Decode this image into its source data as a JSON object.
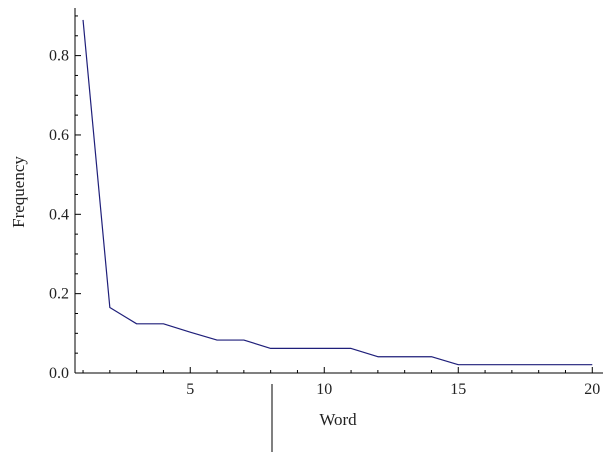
{
  "chart_data": {
    "type": "line",
    "title": "",
    "xlabel": "Word",
    "ylabel": "Frequency",
    "xlim": [
      0.7,
      20.4
    ],
    "ylim": [
      0,
      0.92
    ],
    "x_ticks": [
      5,
      10,
      15,
      20
    ],
    "y_ticks": [
      0.0,
      0.2,
      0.4,
      0.6,
      0.8
    ],
    "x_tick_labels": [
      "5",
      "10",
      "15",
      "20"
    ],
    "y_tick_labels": [
      "0.0",
      "0.2",
      "0.4",
      "0.6",
      "0.8"
    ],
    "grid": false,
    "legend": "none",
    "series": [
      {
        "color": "#1f1f7a",
        "x": [
          1,
          2,
          3,
          4,
          5,
          6,
          7,
          8,
          9,
          10,
          11,
          12,
          13,
          14,
          15,
          16,
          17,
          18,
          19,
          20
        ],
        "y": [
          0.89,
          0.165,
          0.124,
          0.124,
          0.103,
          0.083,
          0.083,
          0.062,
          0.062,
          0.062,
          0.062,
          0.041,
          0.041,
          0.041,
          0.021,
          0.021,
          0.021,
          0.021,
          0.021,
          0.021
        ]
      }
    ]
  }
}
